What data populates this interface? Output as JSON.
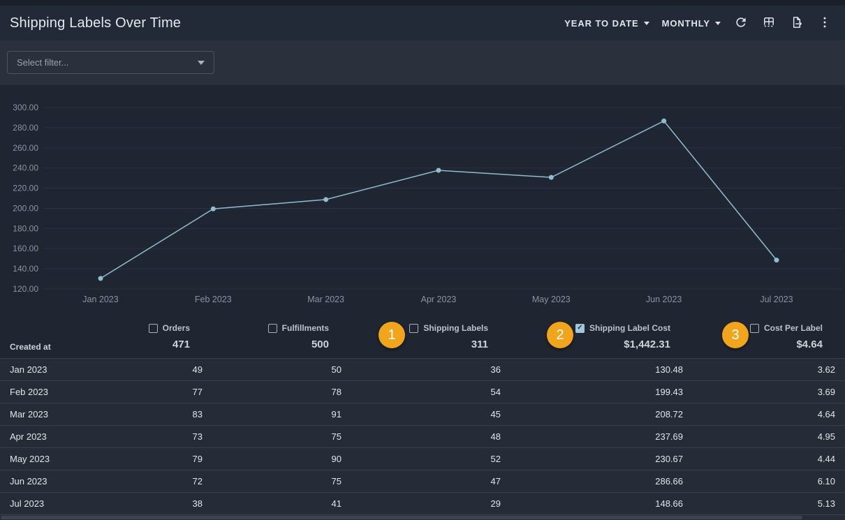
{
  "header": {
    "title": "Shipping Labels Over Time",
    "date_range_label": "YEAR TO DATE",
    "granularity_label": "MONTHLY",
    "icons": [
      "refresh-icon",
      "table-icon",
      "export-icon",
      "more-vertical-icon"
    ]
  },
  "filter": {
    "placeholder": "Select filter..."
  },
  "chart_data": {
    "type": "line",
    "title": "Shipping Labels Over Time",
    "x": [
      "Jan 2023",
      "Feb 2023",
      "Mar 2023",
      "Apr 2023",
      "May 2023",
      "Jun 2023",
      "Jul 2023"
    ],
    "series": [
      {
        "name": "Shipping Label Cost",
        "values": [
          130.48,
          199.43,
          208.72,
          237.69,
          230.67,
          286.66,
          148.66
        ]
      }
    ],
    "ylim": [
      120,
      300
    ],
    "ytick_step": 20,
    "ytick_decimals": 2,
    "grid": true,
    "legend": "none"
  },
  "table": {
    "row_header_label": "Created at",
    "columns": [
      {
        "label": "Orders",
        "total": "471",
        "checked": false,
        "badge": null
      },
      {
        "label": "Fulfillments",
        "total": "500",
        "checked": false,
        "badge": null
      },
      {
        "label": "Shipping Labels",
        "total": "311",
        "checked": false,
        "badge": "1"
      },
      {
        "label": "Shipping Label Cost",
        "total": "$1,442.31",
        "checked": true,
        "badge": "2"
      },
      {
        "label": "Cost Per Label",
        "total": "$4.64",
        "checked": false,
        "badge": "3"
      }
    ],
    "rows": [
      {
        "label": "Jan 2023",
        "values": [
          "49",
          "50",
          "36",
          "130.48",
          "3.62"
        ]
      },
      {
        "label": "Feb 2023",
        "values": [
          "77",
          "78",
          "54",
          "199.43",
          "3.69"
        ]
      },
      {
        "label": "Mar 2023",
        "values": [
          "83",
          "91",
          "45",
          "208.72",
          "4.64"
        ]
      },
      {
        "label": "Apr 2023",
        "values": [
          "73",
          "75",
          "48",
          "237.69",
          "4.95"
        ]
      },
      {
        "label": "May 2023",
        "values": [
          "79",
          "90",
          "52",
          "230.67",
          "4.44"
        ]
      },
      {
        "label": "Jun 2023",
        "values": [
          "72",
          "75",
          "47",
          "286.66",
          "6.10"
        ]
      },
      {
        "label": "Jul 2023",
        "values": [
          "38",
          "41",
          "29",
          "148.66",
          "5.13"
        ]
      }
    ]
  },
  "colors": {
    "badge": "#f0a51c",
    "line": "#8ebdd0",
    "checked_checkbox": "#a3c7da",
    "axis_text": "#8b93a0",
    "gridline": "#2a3140"
  }
}
